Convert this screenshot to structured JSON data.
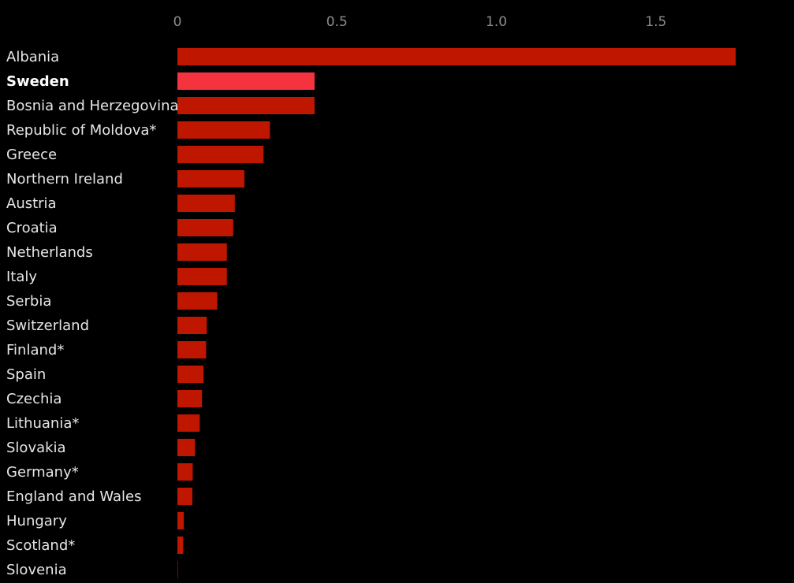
{
  "chart_data": {
    "type": "bar",
    "orientation": "horizontal",
    "categories": [
      "Albania",
      "Sweden",
      "Bosnia and Herzegovina",
      "Republic of Moldova*",
      "Greece",
      "Northern Ireland",
      "Austria",
      "Croatia",
      "Netherlands",
      "Italy",
      "Serbia",
      "Switzerland",
      "Finland*",
      "Spain",
      "Czechia",
      "Lithuania*",
      "Slovakia",
      "Germany*",
      "England and Wales",
      "Hungary",
      "Scotland*",
      "Slovenia"
    ],
    "values": [
      1.75,
      0.43,
      0.43,
      0.29,
      0.27,
      0.21,
      0.18,
      0.175,
      0.155,
      0.155,
      0.125,
      0.092,
      0.09,
      0.082,
      0.077,
      0.07,
      0.055,
      0.048,
      0.047,
      0.02,
      0.018,
      0.0
    ],
    "highlight": "Sweden",
    "xticks": [
      0,
      0.5,
      1.0,
      1.5
    ],
    "xtick_labels": [
      "0",
      "0.5",
      "1.0",
      "1.5"
    ],
    "xlim": [
      0,
      1.75
    ],
    "grid": false,
    "colors": {
      "bar": "#bf1600",
      "highlight": "#f5333f",
      "background": "#000000",
      "label": "#e6e6e6",
      "highlight_label": "#ffffff",
      "tick": "#8c8c8c"
    }
  }
}
